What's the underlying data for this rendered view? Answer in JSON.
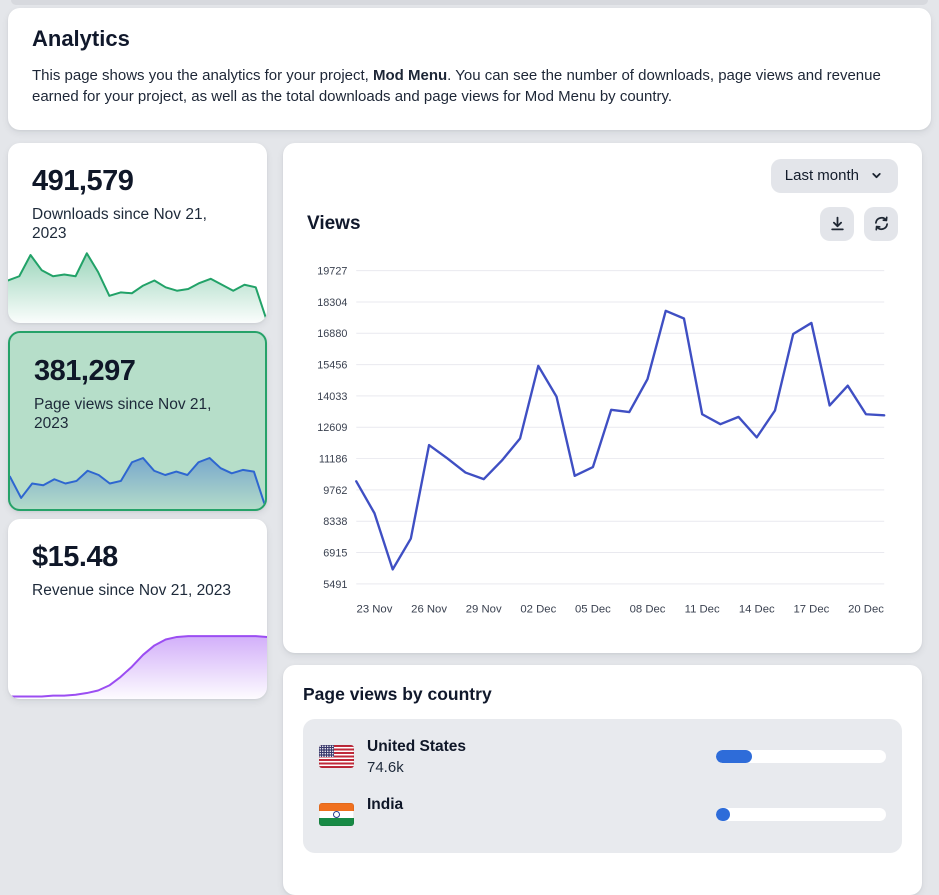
{
  "header": {
    "title": "Analytics",
    "desc_prefix": "This page shows you the analytics for your project, ",
    "project_name": "Mod Menu",
    "desc_suffix": ". You can see the number of downloads, page views and revenue earned for your project, as well as the total downloads and page views for Mod Menu by country."
  },
  "stat_cards": [
    {
      "id": "downloads",
      "value": "491,579",
      "label": "Downloads since Nov 21, 2023",
      "selected": false,
      "accent": "#22a268",
      "spark": [
        0.5,
        0.55,
        0.8,
        0.62,
        0.55,
        0.57,
        0.55,
        0.82,
        0.6,
        0.32,
        0.36,
        0.35,
        0.44,
        0.5,
        0.42,
        0.38,
        0.4,
        0.47,
        0.52,
        0.45,
        0.38,
        0.45,
        0.42,
        0.02
      ]
    },
    {
      "id": "page-views",
      "value": "381,297",
      "label": "Page views since Nov 21, 2023",
      "selected": true,
      "accent": "#2e66d0",
      "spark": [
        0.38,
        0.13,
        0.3,
        0.28,
        0.35,
        0.3,
        0.33,
        0.45,
        0.4,
        0.3,
        0.33,
        0.55,
        0.6,
        0.45,
        0.4,
        0.44,
        0.4,
        0.55,
        0.6,
        0.48,
        0.42,
        0.46,
        0.44,
        0.04
      ]
    },
    {
      "id": "revenue",
      "value": "$15.48",
      "label": "Revenue since Nov 21, 2023",
      "selected": false,
      "accent": "#9b4df2",
      "spark": [
        0.03,
        0.03,
        0.03,
        0.03,
        0.04,
        0.04,
        0.05,
        0.07,
        0.1,
        0.16,
        0.26,
        0.38,
        0.52,
        0.63,
        0.7,
        0.73,
        0.74,
        0.74,
        0.74,
        0.74,
        0.74,
        0.74,
        0.74,
        0.73
      ]
    }
  ],
  "views_panel": {
    "range_selector": {
      "label": "Last month",
      "icon": "chevron-down-icon"
    },
    "title": "Views",
    "actions": [
      {
        "name": "download",
        "icon": "download-icon"
      },
      {
        "name": "refresh",
        "icon": "refresh-icon"
      }
    ],
    "chart_data": {
      "type": "line",
      "title": "Views",
      "xlabel": "",
      "ylabel": "",
      "grid": true,
      "legend": false,
      "line_color": "#3f4fc3",
      "grid_color": "#e9e9ef",
      "tick_color": "#3a4150",
      "ylim": [
        5491,
        19727
      ],
      "y_ticks": [
        5491,
        6915,
        8338,
        9762,
        11186,
        12609,
        14033,
        15456,
        16880,
        18304,
        19727
      ],
      "x": [
        "22 Nov",
        "23 Nov",
        "24 Nov",
        "25 Nov",
        "26 Nov",
        "27 Nov",
        "28 Nov",
        "29 Nov",
        "30 Nov",
        "01 Dec",
        "02 Dec",
        "03 Dec",
        "04 Dec",
        "05 Dec",
        "06 Dec",
        "07 Dec",
        "08 Dec",
        "09 Dec",
        "10 Dec",
        "11 Dec",
        "12 Dec",
        "13 Dec",
        "14 Dec",
        "15 Dec",
        "16 Dec",
        "17 Dec",
        "18 Dec",
        "19 Dec",
        "20 Dec",
        "21 Dec"
      ],
      "x_tick_indices": [
        1,
        4,
        7,
        10,
        13,
        16,
        19,
        22,
        25,
        28
      ],
      "values": [
        10150,
        8700,
        6150,
        7550,
        11800,
        11200,
        10550,
        10250,
        11100,
        12100,
        15400,
        14000,
        10400,
        10800,
        13400,
        13300,
        14800,
        17900,
        17550,
        13200,
        12750,
        13080,
        12150,
        13370,
        16850,
        17350,
        13600,
        14500,
        13200,
        13150
      ]
    }
  },
  "country_panel": {
    "title": "Page views by country",
    "bar_color": "#2e6cd9",
    "rows": [
      {
        "country": "United States",
        "value": "74.6k",
        "percent": 21,
        "flag": "us"
      },
      {
        "country": "India",
        "value": "",
        "percent": 8,
        "flag": "in"
      }
    ]
  }
}
